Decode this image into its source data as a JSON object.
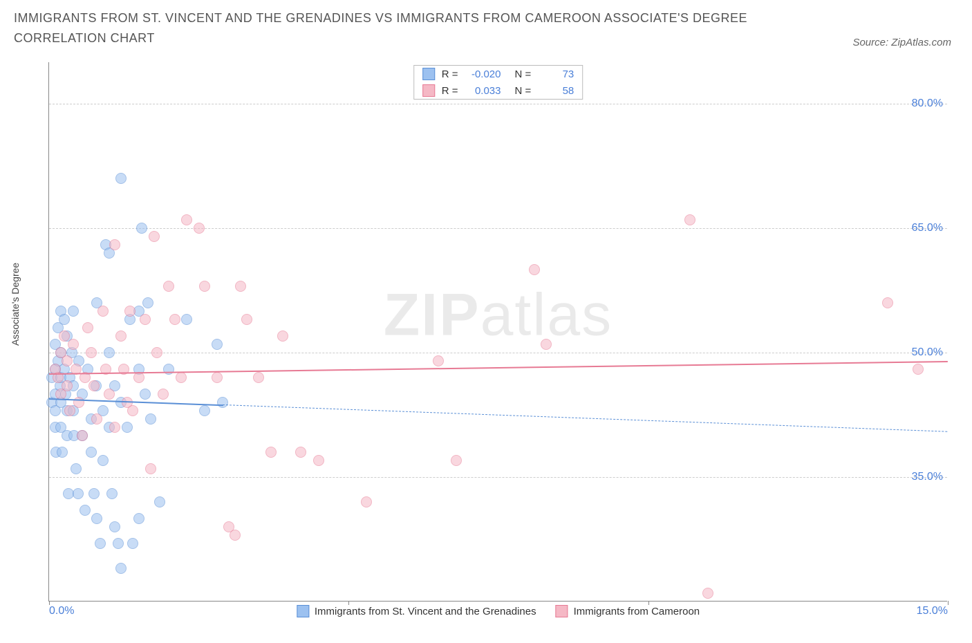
{
  "title": "IMMIGRANTS FROM ST. VINCENT AND THE GRENADINES VS IMMIGRANTS FROM CAMEROON ASSOCIATE'S DEGREE CORRELATION CHART",
  "source": "Source: ZipAtlas.com",
  "ylabel": "Associate's Degree",
  "watermark_a": "ZIP",
  "watermark_b": "atlas",
  "chart": {
    "type": "scatter",
    "xlim": [
      0,
      15
    ],
    "ylim": [
      20,
      85
    ],
    "x_ticks": [
      0,
      5,
      10,
      15
    ],
    "x_tick_labels": [
      "0.0%",
      "",
      "",
      "15.0%"
    ],
    "y_ticks_right": [
      35,
      50,
      65,
      80
    ],
    "y_tick_labels": [
      "35.0%",
      "50.0%",
      "65.0%",
      "80.0%"
    ],
    "grid_color": "#cccccc",
    "axis_color": "#888888",
    "tick_label_color": "#4a7fd8",
    "background_color": "#ffffff",
    "point_radius": 8,
    "point_opacity": 0.55,
    "series": [
      {
        "name": "Immigrants from St. Vincent and the Grenadines",
        "color_fill": "#9cc1f0",
        "color_stroke": "#5a8fd6",
        "r": "-0.020",
        "n": "73",
        "trend": {
          "x0": 0,
          "y0": 44.5,
          "x1": 15,
          "y1": 40.5,
          "solid_until_x": 2.9,
          "width": 2.5
        },
        "points": [
          [
            0.05,
            47
          ],
          [
            0.05,
            44
          ],
          [
            0.1,
            51
          ],
          [
            0.1,
            48
          ],
          [
            0.1,
            45
          ],
          [
            0.1,
            43
          ],
          [
            0.1,
            41
          ],
          [
            0.12,
            38
          ],
          [
            0.15,
            53
          ],
          [
            0.15,
            49
          ],
          [
            0.18,
            46
          ],
          [
            0.2,
            55
          ],
          [
            0.2,
            50
          ],
          [
            0.2,
            47
          ],
          [
            0.2,
            44
          ],
          [
            0.2,
            41
          ],
          [
            0.22,
            38
          ],
          [
            0.25,
            54
          ],
          [
            0.25,
            48
          ],
          [
            0.28,
            45
          ],
          [
            0.3,
            52
          ],
          [
            0.3,
            43
          ],
          [
            0.3,
            40
          ],
          [
            0.32,
            33
          ],
          [
            0.35,
            47
          ],
          [
            0.38,
            50
          ],
          [
            0.4,
            55
          ],
          [
            0.4,
            46
          ],
          [
            0.4,
            43
          ],
          [
            0.42,
            40
          ],
          [
            0.45,
            36
          ],
          [
            0.48,
            33
          ],
          [
            0.5,
            49
          ],
          [
            0.55,
            45
          ],
          [
            0.55,
            40
          ],
          [
            0.6,
            31
          ],
          [
            0.65,
            48
          ],
          [
            0.7,
            42
          ],
          [
            0.7,
            38
          ],
          [
            0.75,
            33
          ],
          [
            0.78,
            46
          ],
          [
            0.8,
            56
          ],
          [
            0.8,
            30
          ],
          [
            0.85,
            27
          ],
          [
            0.9,
            43
          ],
          [
            0.9,
            37
          ],
          [
            0.95,
            63
          ],
          [
            1.0,
            62
          ],
          [
            1.0,
            50
          ],
          [
            1.0,
            41
          ],
          [
            1.05,
            33
          ],
          [
            1.1,
            46
          ],
          [
            1.1,
            29
          ],
          [
            1.15,
            27
          ],
          [
            1.2,
            71
          ],
          [
            1.2,
            44
          ],
          [
            1.2,
            24
          ],
          [
            1.3,
            41
          ],
          [
            1.35,
            54
          ],
          [
            1.4,
            27
          ],
          [
            1.5,
            55
          ],
          [
            1.5,
            48
          ],
          [
            1.5,
            30
          ],
          [
            1.55,
            65
          ],
          [
            1.6,
            45
          ],
          [
            1.65,
            56
          ],
          [
            1.7,
            42
          ],
          [
            1.85,
            32
          ],
          [
            2.0,
            48
          ],
          [
            2.3,
            54
          ],
          [
            2.6,
            43
          ],
          [
            2.8,
            51
          ],
          [
            2.9,
            44
          ]
        ]
      },
      {
        "name": "Immigrants from Cameroon",
        "color_fill": "#f5b8c5",
        "color_stroke": "#e77a94",
        "r": "0.033",
        "n": "58",
        "trend": {
          "x0": 0,
          "y0": 47.5,
          "x1": 15,
          "y1": 49.0,
          "solid_until_x": 15,
          "width": 2.5
        },
        "points": [
          [
            0.1,
            48
          ],
          [
            0.15,
            47
          ],
          [
            0.2,
            50
          ],
          [
            0.2,
            45
          ],
          [
            0.25,
            52
          ],
          [
            0.3,
            49
          ],
          [
            0.3,
            46
          ],
          [
            0.35,
            43
          ],
          [
            0.4,
            51
          ],
          [
            0.45,
            48
          ],
          [
            0.5,
            44
          ],
          [
            0.55,
            40
          ],
          [
            0.6,
            47
          ],
          [
            0.65,
            53
          ],
          [
            0.7,
            50
          ],
          [
            0.75,
            46
          ],
          [
            0.8,
            42
          ],
          [
            0.9,
            55
          ],
          [
            0.95,
            48
          ],
          [
            1.0,
            45
          ],
          [
            1.1,
            63
          ],
          [
            1.1,
            41
          ],
          [
            1.2,
            52
          ],
          [
            1.25,
            48
          ],
          [
            1.3,
            44
          ],
          [
            1.35,
            55
          ],
          [
            1.4,
            43
          ],
          [
            1.5,
            47
          ],
          [
            1.6,
            54
          ],
          [
            1.7,
            36
          ],
          [
            1.75,
            64
          ],
          [
            1.8,
            50
          ],
          [
            1.9,
            45
          ],
          [
            2.0,
            58
          ],
          [
            2.1,
            54
          ],
          [
            2.2,
            47
          ],
          [
            2.3,
            66
          ],
          [
            2.5,
            65
          ],
          [
            2.6,
            58
          ],
          [
            2.8,
            47
          ],
          [
            3.0,
            29
          ],
          [
            3.1,
            28
          ],
          [
            3.2,
            58
          ],
          [
            3.3,
            54
          ],
          [
            3.5,
            47
          ],
          [
            3.7,
            38
          ],
          [
            3.9,
            52
          ],
          [
            4.2,
            38
          ],
          [
            4.5,
            37
          ],
          [
            5.3,
            32
          ],
          [
            6.5,
            49
          ],
          [
            6.8,
            37
          ],
          [
            8.1,
            60
          ],
          [
            8.3,
            51
          ],
          [
            10.7,
            66
          ],
          [
            11.0,
            21
          ],
          [
            14.0,
            56
          ],
          [
            14.5,
            48
          ]
        ]
      }
    ]
  },
  "legend_top_labels": {
    "r": "R =",
    "n": "N ="
  },
  "legend_bottom": [
    {
      "label": "Immigrants from St. Vincent and the Grenadines",
      "fill": "#9cc1f0",
      "stroke": "#5a8fd6"
    },
    {
      "label": "Immigrants from Cameroon",
      "fill": "#f5b8c5",
      "stroke": "#e77a94"
    }
  ]
}
